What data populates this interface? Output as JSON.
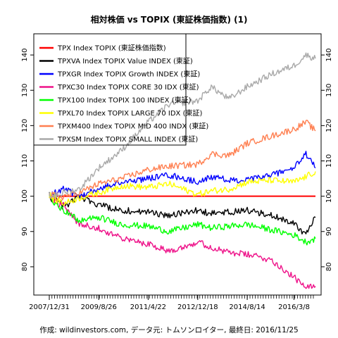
{
  "chart_data": {
    "type": "line",
    "title": "相対株価 vs TOPIX (東証株価指数) (1)",
    "footer": "作成: wildinvestors.com, データ元: トムソンロイター, 最終日: 2016/11/25",
    "xlabel": "",
    "ylabel": "",
    "x_range": [
      "2007/12/31",
      "2016/11/25"
    ],
    "x_tick_labels": [
      "2007/12/31",
      "2009/8/26",
      "2011/4/22",
      "2012/12/18",
      "2014/8/14",
      "2016/3/8"
    ],
    "ylim": [
      72,
      146
    ],
    "y_ticks": [
      80,
      90,
      100,
      110,
      120,
      130,
      140
    ],
    "grid": false,
    "legend_position": "top-left",
    "dates": [
      "2007/12/31",
      "2008/7/1",
      "2009/1/1",
      "2009/8/26",
      "2010/6/1",
      "2011/4/22",
      "2012/1/1",
      "2012/12/18",
      "2013/6/1",
      "2014/1/1",
      "2014/8/14",
      "2015/6/1",
      "2016/3/8",
      "2016/8/1",
      "2016/11/25"
    ],
    "series": [
      {
        "name": "TPX Index TOPIX (東証株価指数)",
        "color": "#ff0000",
        "values": [
          100,
          100,
          100,
          100,
          100,
          100,
          100,
          100,
          100,
          100,
          100,
          100,
          100,
          100,
          100
        ]
      },
      {
        "name": "TPXVA Index TOPIX Value INDEX (東証)",
        "color": "#000000",
        "values": [
          100,
          97,
          100,
          97.5,
          96,
          95.5,
          94.5,
          96,
          95,
          95.5,
          96,
          94.5,
          92.5,
          89,
          94
        ]
      },
      {
        "name": "TPXGR Index TOPIX Growth INDEX (東証)",
        "color": "#0000ff",
        "values": [
          100,
          102,
          100,
          102,
          104,
          105,
          106,
          104,
          105.5,
          104.5,
          104.5,
          106,
          108,
          112,
          108
        ]
      },
      {
        "name": "TPXC30 Index TOPIX CORE 30 IDX (東証)",
        "color": "#ee1289",
        "values": [
          100,
          97,
          92,
          91,
          88,
          86.5,
          84.5,
          87,
          85.5,
          84,
          83.5,
          82,
          77,
          74,
          74.5
        ]
      },
      {
        "name": "TPX100 Index TOPIX 100 INDEX (東証)",
        "color": "#00ff00",
        "values": [
          100,
          96,
          93,
          94,
          92,
          91.5,
          90,
          92,
          91,
          91.5,
          92,
          90.5,
          89,
          87,
          88
        ]
      },
      {
        "name": "TPXL70 Index TOPIX LARGE 70 IDX (東証)",
        "color": "#ffff00",
        "values": [
          100,
          98,
          99.5,
          101,
          103,
          102.5,
          103.5,
          100.5,
          101.5,
          102,
          104,
          104.5,
          104,
          105.5,
          107
        ]
      },
      {
        "name": "TPXM400 Index TOPIX MID 400 INDX (東証)",
        "color": "#ff7f50",
        "values": [
          100,
          100,
          101,
          103.5,
          105,
          107.5,
          108.5,
          109,
          112,
          111.5,
          115,
          117,
          119,
          121,
          118.5
        ]
      },
      {
        "name": "TPXSM Index TOPIX SMALL INDEX (東証)",
        "color": "#a9a9a9",
        "values": [
          100,
          101,
          102,
          108,
          113,
          121,
          126,
          127,
          131,
          127.5,
          131,
          134.5,
          137,
          140,
          139
        ]
      }
    ]
  }
}
